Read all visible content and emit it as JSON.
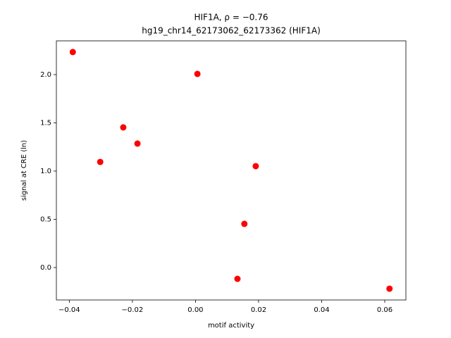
{
  "chart_data": {
    "type": "scatter",
    "title": "HIF1A, ρ = −0.76",
    "subtitle": "hg19_chr14_62173062_62173362 (HIF1A)",
    "x_label": "motif activity",
    "y_label": "signal at CRE (ln)",
    "color": "#ff0000",
    "x": [
      -0.0389,
      0.0006,
      -0.0229,
      -0.0184,
      -0.0302,
      0.0191,
      0.0155,
      0.0133,
      0.0615
    ],
    "values": [
      2.234,
      2.007,
      1.453,
      1.285,
      1.095,
      1.051,
      0.453,
      -0.117,
      -0.219
    ],
    "xlim": [
      -0.0441,
      0.0667
    ],
    "ylim": [
      -0.336,
      2.35
    ],
    "xticks": [
      {
        "value": -0.04,
        "label": "−0.04"
      },
      {
        "value": -0.02,
        "label": "−0.02"
      },
      {
        "value": 0,
        "label": "0.00"
      },
      {
        "value": 0.02,
        "label": "0.02"
      },
      {
        "value": 0.04,
        "label": "0.04"
      },
      {
        "value": 0.06,
        "label": "0.06"
      }
    ],
    "yticks": [
      {
        "value": 0,
        "label": "0.0"
      },
      {
        "value": 0.5,
        "label": "0.5"
      },
      {
        "value": 1,
        "label": "1.0"
      },
      {
        "value": 1.5,
        "label": "1.5"
      },
      {
        "value": 2,
        "label": "2.0"
      }
    ]
  }
}
